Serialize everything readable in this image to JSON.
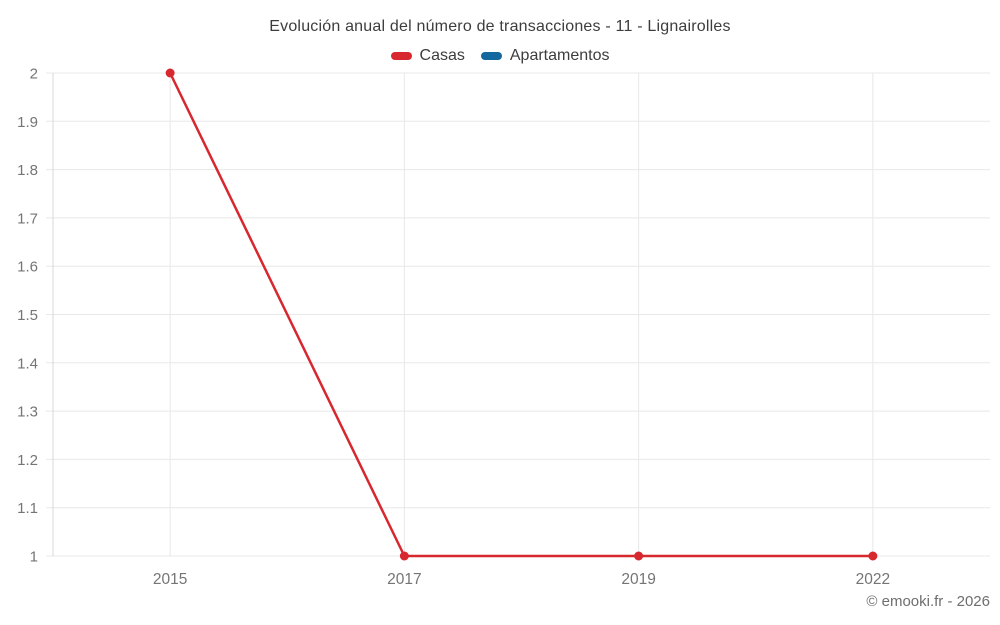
{
  "chart_data": {
    "type": "line",
    "title": "Evolución anual del número de transacciones - 11 - Lignairolles",
    "categories": [
      "2015",
      "2017",
      "2019",
      "2022"
    ],
    "series": [
      {
        "name": "Casas",
        "color": "#d7282f",
        "values": [
          2,
          1,
          1,
          1
        ]
      },
      {
        "name": "Apartamentos",
        "color": "#15689e",
        "values": null
      }
    ],
    "ylim": [
      1,
      2
    ],
    "ytick_step": 0.1,
    "xlabel": "",
    "ylabel": "",
    "grid": true,
    "legend_position": "top",
    "marker": "circle"
  },
  "footer": {
    "credit": "© emooki.fr - 2026"
  },
  "style": {
    "background": "#ffffff",
    "grid_color": "#e8e8e8",
    "axis_color": "#d8d8d8",
    "tick_label_color": "#757575",
    "title_color": "#3d3d3d",
    "line_width": 2.5,
    "marker_radius": 4.5
  }
}
